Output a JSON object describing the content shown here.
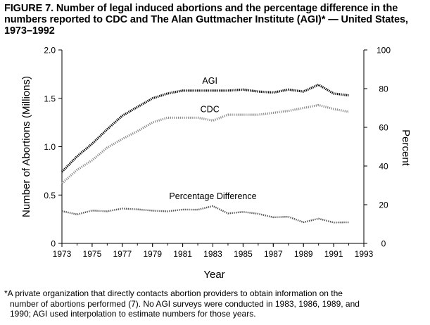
{
  "figure": {
    "title_lines": [
      "FIGURE 7. Number of legal induced abortions and the percentage difference in the",
      "numbers reported to CDC and The Alan Guttmacher Institute (AGI)* — United States,",
      "1973–1992"
    ]
  },
  "footnote": {
    "lines": [
      "*A private organization that directly contacts abortion providers to obtain information on the",
      "number of abortions performed (7). No AGI surveys were conducted in 1983, 1986, 1989, and",
      "1990; AGI used interpolation to estimate numbers for those years."
    ]
  },
  "chart_data": {
    "type": "line",
    "xlabel": "Year",
    "ylabel": "Number of Abortions (Millions)",
    "y2label": "Percent",
    "xlim": [
      1973,
      1993
    ],
    "ylim": [
      0,
      2.0
    ],
    "y2lim": [
      0,
      100
    ],
    "xticks": [
      "1973",
      "1975",
      "1977",
      "1979",
      "1981",
      "1983",
      "1985",
      "1987",
      "1989",
      "1991",
      "1993"
    ],
    "yticks": [
      "0",
      "0.5",
      "1.0",
      "1.5",
      "2.0"
    ],
    "y2ticks": [
      "0",
      "20",
      "40",
      "60",
      "80",
      "100"
    ],
    "x": [
      1973,
      1974,
      1975,
      1976,
      1977,
      1978,
      1979,
      1980,
      1981,
      1982,
      1983,
      1984,
      1985,
      1986,
      1987,
      1988,
      1989,
      1990,
      1991,
      1992
    ],
    "series": [
      {
        "name": "AGI",
        "axis": "left",
        "style": "dotted-dark",
        "values": [
          0.74,
          0.9,
          1.03,
          1.18,
          1.32,
          1.41,
          1.5,
          1.55,
          1.58,
          1.58,
          1.58,
          1.58,
          1.59,
          1.57,
          1.56,
          1.59,
          1.57,
          1.64,
          1.55,
          1.53
        ],
        "label": "AGI"
      },
      {
        "name": "CDC",
        "axis": "left",
        "style": "dotted-light",
        "values": [
          0.62,
          0.76,
          0.86,
          0.99,
          1.08,
          1.16,
          1.25,
          1.3,
          1.3,
          1.3,
          1.27,
          1.33,
          1.33,
          1.33,
          1.35,
          1.37,
          1.4,
          1.43,
          1.39,
          1.36
        ],
        "label": "CDC"
      },
      {
        "name": "Percentage Difference",
        "axis": "right",
        "style": "dotted-mid",
        "values": [
          16.7,
          15.0,
          17.0,
          16.6,
          18.0,
          17.6,
          16.9,
          16.6,
          17.5,
          17.4,
          19.3,
          15.5,
          16.3,
          15.3,
          13.5,
          13.8,
          10.9,
          12.8,
          10.8,
          10.9
        ],
        "label": "Percentage Difference"
      }
    ]
  }
}
